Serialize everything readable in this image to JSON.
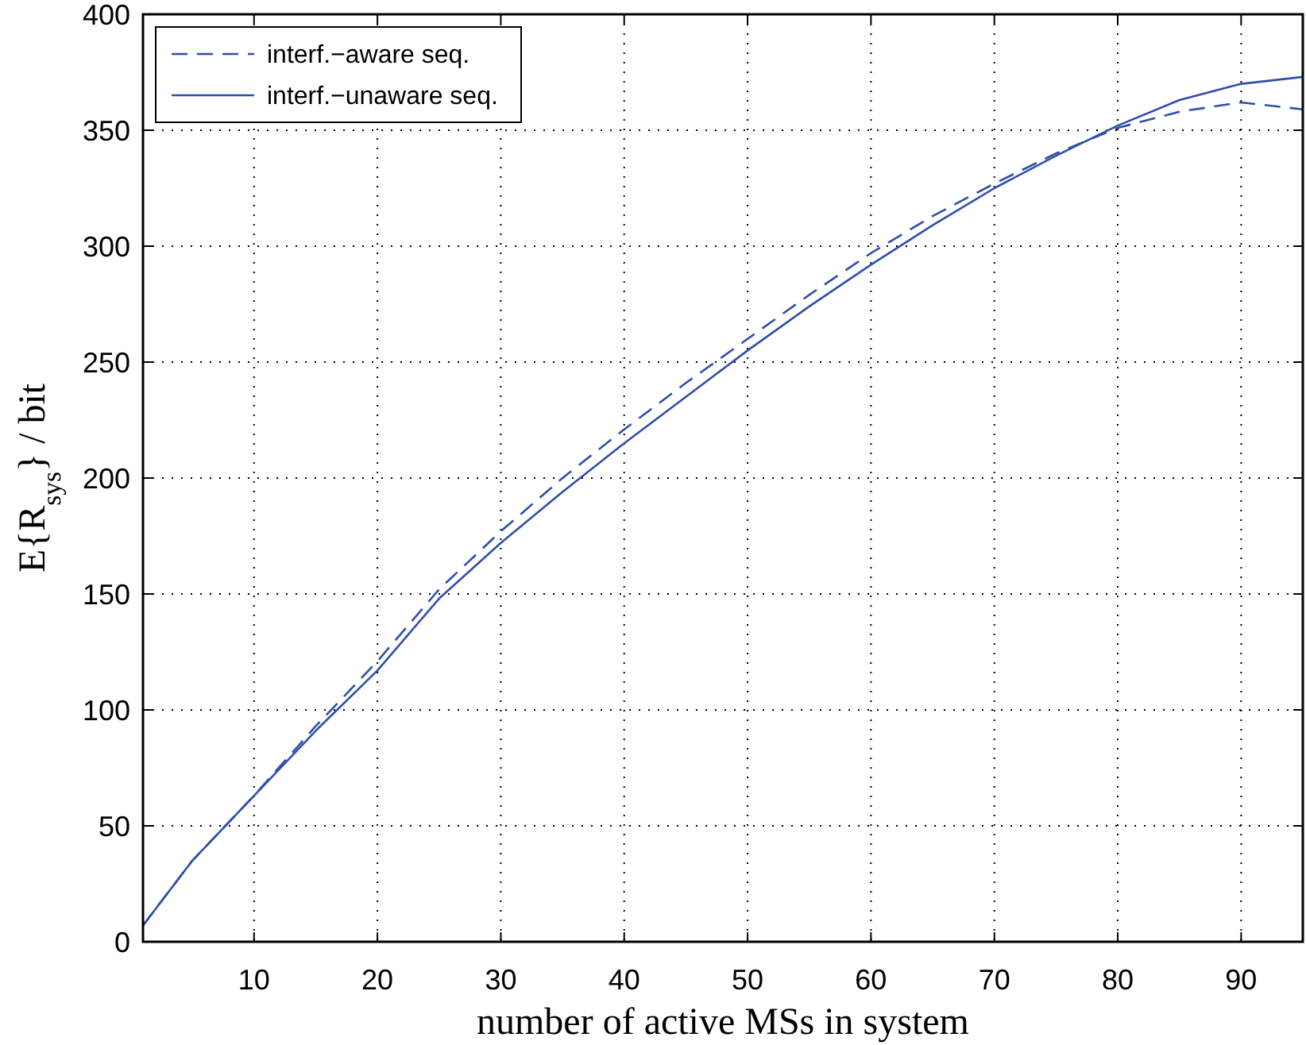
{
  "chart_data": {
    "type": "line",
    "xlabel": "number of active MSs in system",
    "ylabel": "E{R$_{sys}$} / bit",
    "xlim": [
      1,
      95
    ],
    "xticks": [
      10,
      20,
      30,
      40,
      50,
      60,
      70,
      80,
      90
    ],
    "ylim": [
      0,
      400
    ],
    "yticks": [
      0,
      50,
      100,
      150,
      200,
      250,
      300,
      350,
      400
    ],
    "grid": true,
    "legend": "top left",
    "marker": "none",
    "series": [
      {
        "name": "interf.−aware seq.",
        "color": "#2f4fa8",
        "line_style": "dashed",
        "x": [
          1,
          5,
          10,
          15,
          20,
          25,
          30,
          35,
          40,
          45,
          50,
          55,
          60,
          65,
          70,
          75,
          80,
          85,
          90,
          95
        ],
        "values": [
          7,
          35,
          63,
          93,
          121,
          152,
          177,
          200,
          221,
          241,
          260,
          279,
          297,
          313,
          327,
          340,
          351,
          358,
          362,
          359
        ]
      },
      {
        "name": "interf.−unaware seq.",
        "color": "#2f4fa8",
        "line_style": "solid",
        "x": [
          1,
          5,
          10,
          15,
          20,
          25,
          30,
          35,
          40,
          45,
          50,
          55,
          60,
          65,
          70,
          75,
          80,
          85,
          90,
          95
        ],
        "values": [
          7,
          35,
          63,
          91,
          117,
          148,
          172,
          194,
          215,
          235,
          255,
          274,
          292,
          309,
          325,
          339,
          352,
          363,
          370,
          373
        ]
      }
    ]
  }
}
